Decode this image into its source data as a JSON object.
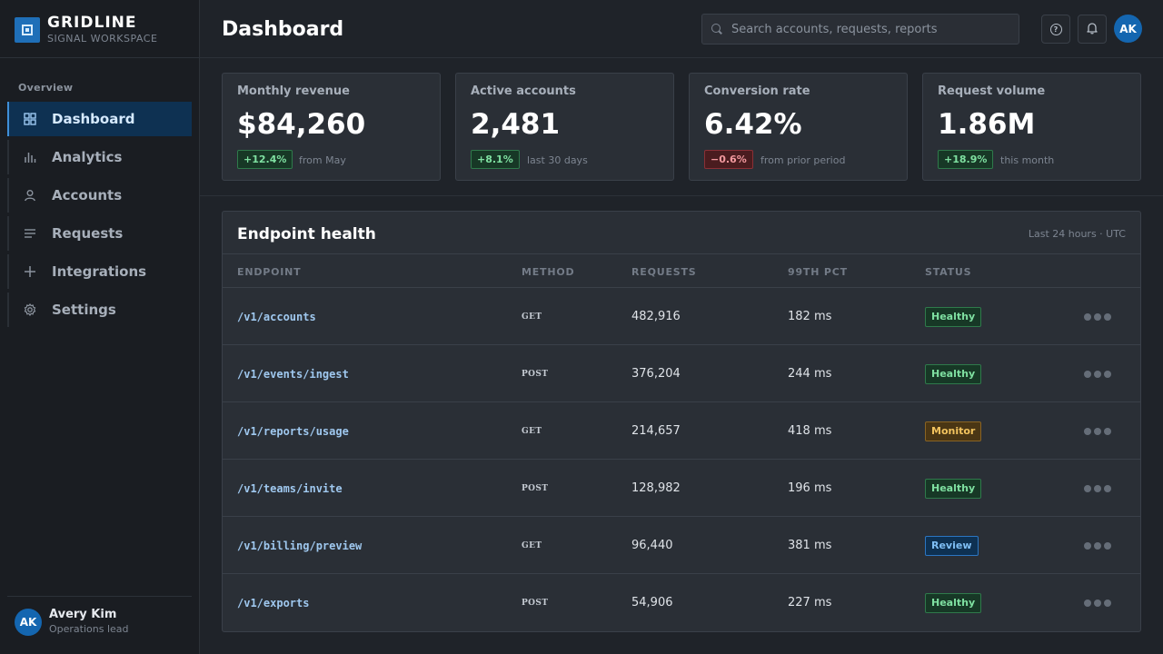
{
  "brand": {
    "name": "GRIDLINE",
    "subtitle": "SIGNAL WORKSPACE",
    "logo_icon": "grid-square-icon",
    "color": "#1f6fb8"
  },
  "sidebar": {
    "section_label": "Overview",
    "items": [
      {
        "label": "Dashboard",
        "icon": "dashboard-grid-icon",
        "active": true
      },
      {
        "label": "Analytics",
        "icon": "bar-chart-icon",
        "active": false
      },
      {
        "label": "Accounts",
        "icon": "user-icon",
        "active": false
      },
      {
        "label": "Requests",
        "icon": "list-lines-icon",
        "active": false
      },
      {
        "label": "Integrations",
        "icon": "plus-icon",
        "active": false
      },
      {
        "label": "Settings",
        "icon": "gear-icon",
        "active": false
      }
    ],
    "user": {
      "initials": "AK",
      "name": "Avery Kim",
      "role": "Operations lead"
    }
  },
  "header": {
    "title": "Dashboard",
    "search_placeholder": "Search accounts, requests, reports",
    "avatar_initials": "AK"
  },
  "stats": [
    {
      "label": "Monthly revenue",
      "value": "$84,260",
      "delta": "+12.4%",
      "trend": "up",
      "note": "from May"
    },
    {
      "label": "Active accounts",
      "value": "2,481",
      "delta": "+8.1%",
      "trend": "up",
      "note": "last 30 days"
    },
    {
      "label": "Conversion rate",
      "value": "6.42%",
      "delta": "−0.6%",
      "trend": "down",
      "note": "from prior period"
    },
    {
      "label": "Request volume",
      "value": "1.86M",
      "delta": "+18.9%",
      "trend": "up",
      "note": "this month"
    }
  ],
  "endpoint_health": {
    "title": "Endpoint health",
    "meta": "Last 24 hours · UTC",
    "columns": [
      "ENDPOINT",
      "METHOD",
      "REQUESTS",
      "99TH PCT",
      "STATUS"
    ],
    "rows": [
      {
        "endpoint": "/v1/accounts",
        "method": "GET",
        "requests": "482,916",
        "p99": "182 ms",
        "status": "Healthy"
      },
      {
        "endpoint": "/v1/events/ingest",
        "method": "POST",
        "requests": "376,204",
        "p99": "244 ms",
        "status": "Healthy"
      },
      {
        "endpoint": "/v1/reports/usage",
        "method": "GET",
        "requests": "214,657",
        "p99": "418 ms",
        "status": "Monitor"
      },
      {
        "endpoint": "/v1/teams/invite",
        "method": "POST",
        "requests": "128,982",
        "p99": "196 ms",
        "status": "Healthy"
      },
      {
        "endpoint": "/v1/billing/preview",
        "method": "GET",
        "requests": "96,440",
        "p99": "381 ms",
        "status": "Review"
      },
      {
        "endpoint": "/v1/exports",
        "method": "POST",
        "requests": "54,906",
        "p99": "227 ms",
        "status": "Healthy"
      }
    ]
  },
  "colors": {
    "healthy": "#7fe0a1",
    "monitor": "#f2c35e",
    "review": "#7fbff5",
    "negative": "#f39a9f",
    "accent": "#3f8fd8"
  }
}
